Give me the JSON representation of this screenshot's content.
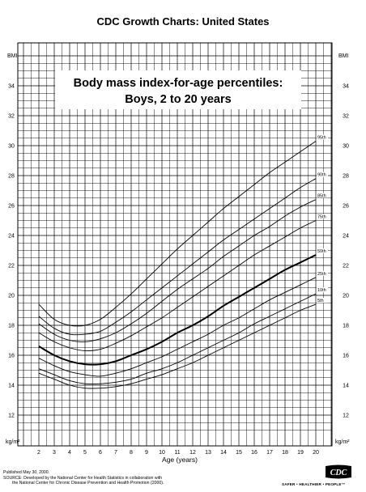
{
  "header": {
    "title": "CDC Growth Charts: United States"
  },
  "footer": {
    "published": "Published May 30, 2000.",
    "source_line1": "SOURCE: Developed by the National Center for Health Statistics in collaboration with",
    "source_line2": "the National Center for Chronic Disease Prevention and Health Promotion (2000).",
    "tagline": "SAFER • HEALTHIER • PEOPLE™",
    "logo_text": "CDC"
  },
  "chart_data": {
    "type": "line",
    "title_line1": "Body mass index-for-age percentiles:",
    "title_line2": "Boys, 2 to 20 years",
    "xlabel": "Age (years)",
    "ylabel_top": "BMI",
    "ylabel_bottom": "kg/m²",
    "xlim": [
      2,
      20
    ],
    "ylim": [
      11,
      36
    ],
    "x_ticks": [
      2,
      3,
      4,
      5,
      6,
      7,
      8,
      9,
      10,
      11,
      12,
      13,
      14,
      15,
      16,
      17,
      18,
      19,
      20
    ],
    "y_ticks": [
      12,
      14,
      16,
      18,
      20,
      22,
      24,
      26,
      28,
      30,
      32,
      34
    ],
    "grid": true,
    "x": [
      2,
      3,
      4,
      5,
      6,
      7,
      8,
      9,
      10,
      11,
      12,
      13,
      14,
      15,
      16,
      17,
      18,
      19,
      20
    ],
    "series": [
      {
        "name": "5th",
        "values": [
          14.8,
          14.4,
          14.0,
          13.8,
          13.8,
          13.9,
          14.1,
          14.4,
          14.7,
          15.1,
          15.5,
          16.0,
          16.5,
          17.0,
          17.5,
          18.0,
          18.5,
          19.0,
          19.4
        ]
      },
      {
        "name": "10th",
        "values": [
          15.1,
          14.7,
          14.3,
          14.1,
          14.1,
          14.2,
          14.4,
          14.8,
          15.1,
          15.5,
          16.0,
          16.5,
          17.0,
          17.5,
          18.1,
          18.6,
          19.1,
          19.6,
          20.1
        ]
      },
      {
        "name": "25th",
        "values": [
          15.8,
          15.3,
          14.9,
          14.7,
          14.6,
          14.8,
          15.1,
          15.5,
          15.9,
          16.4,
          16.9,
          17.4,
          18.0,
          18.5,
          19.1,
          19.7,
          20.2,
          20.7,
          21.2
        ]
      },
      {
        "name": "50th",
        "values": [
          16.6,
          16.0,
          15.6,
          15.4,
          15.4,
          15.6,
          16.0,
          16.4,
          16.9,
          17.5,
          18.0,
          18.6,
          19.3,
          19.9,
          20.5,
          21.1,
          21.7,
          22.2,
          22.7
        ]
      },
      {
        "name": "75th",
        "values": [
          17.5,
          16.9,
          16.5,
          16.3,
          16.4,
          16.8,
          17.3,
          17.9,
          18.5,
          19.2,
          19.9,
          20.6,
          21.3,
          22.0,
          22.7,
          23.3,
          23.9,
          24.5,
          25.0
        ]
      },
      {
        "name": "85th",
        "values": [
          18.1,
          17.4,
          17.0,
          16.9,
          17.1,
          17.5,
          18.1,
          18.8,
          19.6,
          20.4,
          21.1,
          21.8,
          22.6,
          23.3,
          24.0,
          24.6,
          25.3,
          25.9,
          26.4
        ]
      },
      {
        "name": "90th",
        "values": [
          18.6,
          17.8,
          17.4,
          17.4,
          17.6,
          18.2,
          18.9,
          19.7,
          20.5,
          21.3,
          22.1,
          22.9,
          23.7,
          24.4,
          25.1,
          25.8,
          26.5,
          27.2,
          27.8
        ]
      },
      {
        "name": "95th",
        "values": [
          19.4,
          18.4,
          18.0,
          18.0,
          18.4,
          19.2,
          20.1,
          21.1,
          22.1,
          23.1,
          24.0,
          24.9,
          25.8,
          26.6,
          27.4,
          28.2,
          28.9,
          29.6,
          30.3
        ]
      }
    ]
  }
}
